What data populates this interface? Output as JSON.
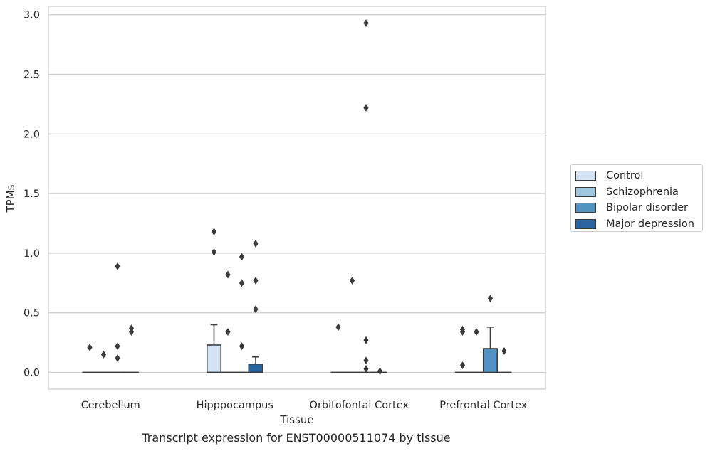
{
  "caption": "Transcript expression for ENST00000511074 by tissue",
  "legend": {
    "items": [
      {
        "label": "Control",
        "color": "#d4e3f3"
      },
      {
        "label": "Schizophrenia",
        "color": "#9ec6de"
      },
      {
        "label": "Bipolar disorder",
        "color": "#5193c2"
      },
      {
        "label": "Major depression",
        "color": "#2865a1"
      }
    ]
  },
  "chart_data": {
    "type": "boxplot",
    "title": "",
    "xlabel": "Tissue",
    "ylabel": "TPMs",
    "ylim": [
      -0.14,
      3.07
    ],
    "yticks": [
      0.0,
      0.5,
      1.0,
      1.5,
      2.0,
      2.5,
      3.0
    ],
    "ytick_labels": [
      "0.0",
      "0.5",
      "1.0",
      "1.5",
      "2.0",
      "2.5",
      "3.0"
    ],
    "grid": "horizontal",
    "legend_position": "right",
    "categories": [
      "Cerebellum",
      "Hipppocampus",
      "Orbitofontal Cortex",
      "Prefrontal Cortex"
    ],
    "series": [
      {
        "name": "Control",
        "color": "#d4e3f3",
        "boxes": [
          {
            "q1": 0,
            "median": 0,
            "q3": 0,
            "whisker_low": 0,
            "whisker_high": 0,
            "outliers": [
              0.21
            ]
          },
          {
            "q1": 0,
            "median": 0,
            "q3": 0.23,
            "whisker_low": 0,
            "whisker_high": 0.4,
            "outliers": [
              1.01,
              1.18
            ]
          },
          {
            "q1": 0,
            "median": 0,
            "q3": 0,
            "whisker_low": 0,
            "whisker_high": 0,
            "outliers": [
              0.38
            ]
          },
          {
            "q1": 0,
            "median": 0,
            "q3": 0,
            "whisker_low": 0,
            "whisker_high": 0,
            "outliers": [
              0.06,
              0.34,
              0.36
            ]
          }
        ]
      },
      {
        "name": "Schizophrenia",
        "color": "#9ec6de",
        "boxes": [
          {
            "q1": 0,
            "median": 0,
            "q3": 0,
            "whisker_low": 0,
            "whisker_high": 0,
            "outliers": [
              0.15
            ]
          },
          {
            "q1": 0,
            "median": 0,
            "q3": 0,
            "whisker_low": 0,
            "whisker_high": 0,
            "outliers": [
              0.34,
              0.82
            ]
          },
          {
            "q1": 0,
            "median": 0,
            "q3": 0,
            "whisker_low": 0,
            "whisker_high": 0,
            "outliers": [
              0.77
            ]
          },
          {
            "q1": 0,
            "median": 0,
            "q3": 0,
            "whisker_low": 0,
            "whisker_high": 0,
            "outliers": [
              0.34
            ]
          }
        ]
      },
      {
        "name": "Bipolar disorder",
        "color": "#5193c2",
        "boxes": [
          {
            "q1": 0,
            "median": 0,
            "q3": 0,
            "whisker_low": 0,
            "whisker_high": 0,
            "outliers": [
              0.12,
              0.22,
              0.89
            ]
          },
          {
            "q1": 0,
            "median": 0,
            "q3": 0,
            "whisker_low": 0,
            "whisker_high": 0,
            "outliers": [
              0.22,
              0.75,
              0.97
            ]
          },
          {
            "q1": 0,
            "median": 0,
            "q3": 0,
            "whisker_low": 0,
            "whisker_high": 0,
            "outliers": [
              0.03,
              0.1,
              0.27,
              2.22,
              2.93
            ]
          },
          {
            "q1": 0,
            "median": 0,
            "q3": 0.2,
            "whisker_low": 0,
            "whisker_high": 0.38,
            "outliers": [
              0.62
            ]
          }
        ]
      },
      {
        "name": "Major depression",
        "color": "#2865a1",
        "boxes": [
          {
            "q1": 0,
            "median": 0,
            "q3": 0,
            "whisker_low": 0,
            "whisker_high": 0,
            "outliers": [
              0.34,
              0.37
            ]
          },
          {
            "q1": 0,
            "median": 0,
            "q3": 0.07,
            "whisker_low": 0,
            "whisker_high": 0.13,
            "outliers": [
              0.53,
              0.77,
              1.08
            ]
          },
          {
            "q1": 0,
            "median": 0,
            "q3": 0,
            "whisker_low": 0,
            "whisker_high": 0,
            "outliers": [
              0.01
            ]
          },
          {
            "q1": 0,
            "median": 0,
            "q3": 0,
            "whisker_low": 0,
            "whisker_high": 0,
            "outliers": [
              0.18
            ]
          }
        ]
      }
    ]
  }
}
